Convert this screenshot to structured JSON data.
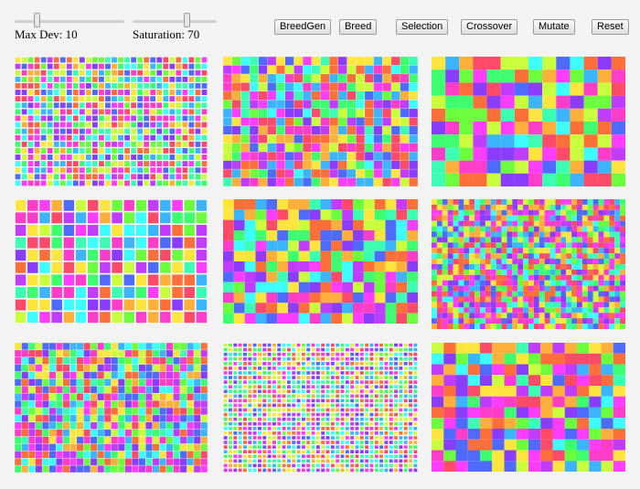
{
  "controls": {
    "max_dev": {
      "label": "Max Dev: ",
      "value": "10",
      "fraction": 0.19
    },
    "saturation": {
      "label": "Saturation: ",
      "value": "70",
      "fraction": 0.66
    }
  },
  "buttons": {
    "breedgen": "BreedGen",
    "breed": "Breed",
    "selection": "Selection",
    "crossover": "Crossover",
    "mutate": "Mutate",
    "reset": "Reset"
  },
  "palette": [
    "#ff4a6a",
    "#ff6f3a",
    "#ffb03b",
    "#ffe53d",
    "#c9ff3d",
    "#6bff3d",
    "#3dff6f",
    "#3dffb4",
    "#3dffff",
    "#3db4ff",
    "#4f6bff",
    "#8a3dff",
    "#c03dff",
    "#ff3dff",
    "#ff3dc8"
  ],
  "tiles": [
    {
      "id": "tile-1",
      "cols": 30,
      "rows": 20,
      "gap": 1.2,
      "seed": 11
    },
    {
      "id": "tile-2",
      "cols": 22,
      "rows": 15,
      "gap": 0.3,
      "seed": 23
    },
    {
      "id": "tile-3",
      "cols": 14,
      "rows": 10,
      "gap": 0,
      "seed": 37
    },
    {
      "id": "tile-4",
      "cols": 16,
      "rows": 10,
      "gap": 1.6,
      "seed": 41
    },
    {
      "id": "tile-5",
      "cols": 18,
      "rows": 12,
      "gap": 0,
      "seed": 53
    },
    {
      "id": "tile-6",
      "cols": 36,
      "rows": 24,
      "gap": 0,
      "seed": 67
    },
    {
      "id": "tile-7",
      "cols": 28,
      "rows": 18,
      "gap": 0.4,
      "seed": 71
    },
    {
      "id": "tile-8",
      "cols": 40,
      "rows": 28,
      "gap": 1.4,
      "seed": 89
    },
    {
      "id": "tile-9",
      "cols": 16,
      "rows": 12,
      "gap": 0,
      "seed": 97
    }
  ]
}
